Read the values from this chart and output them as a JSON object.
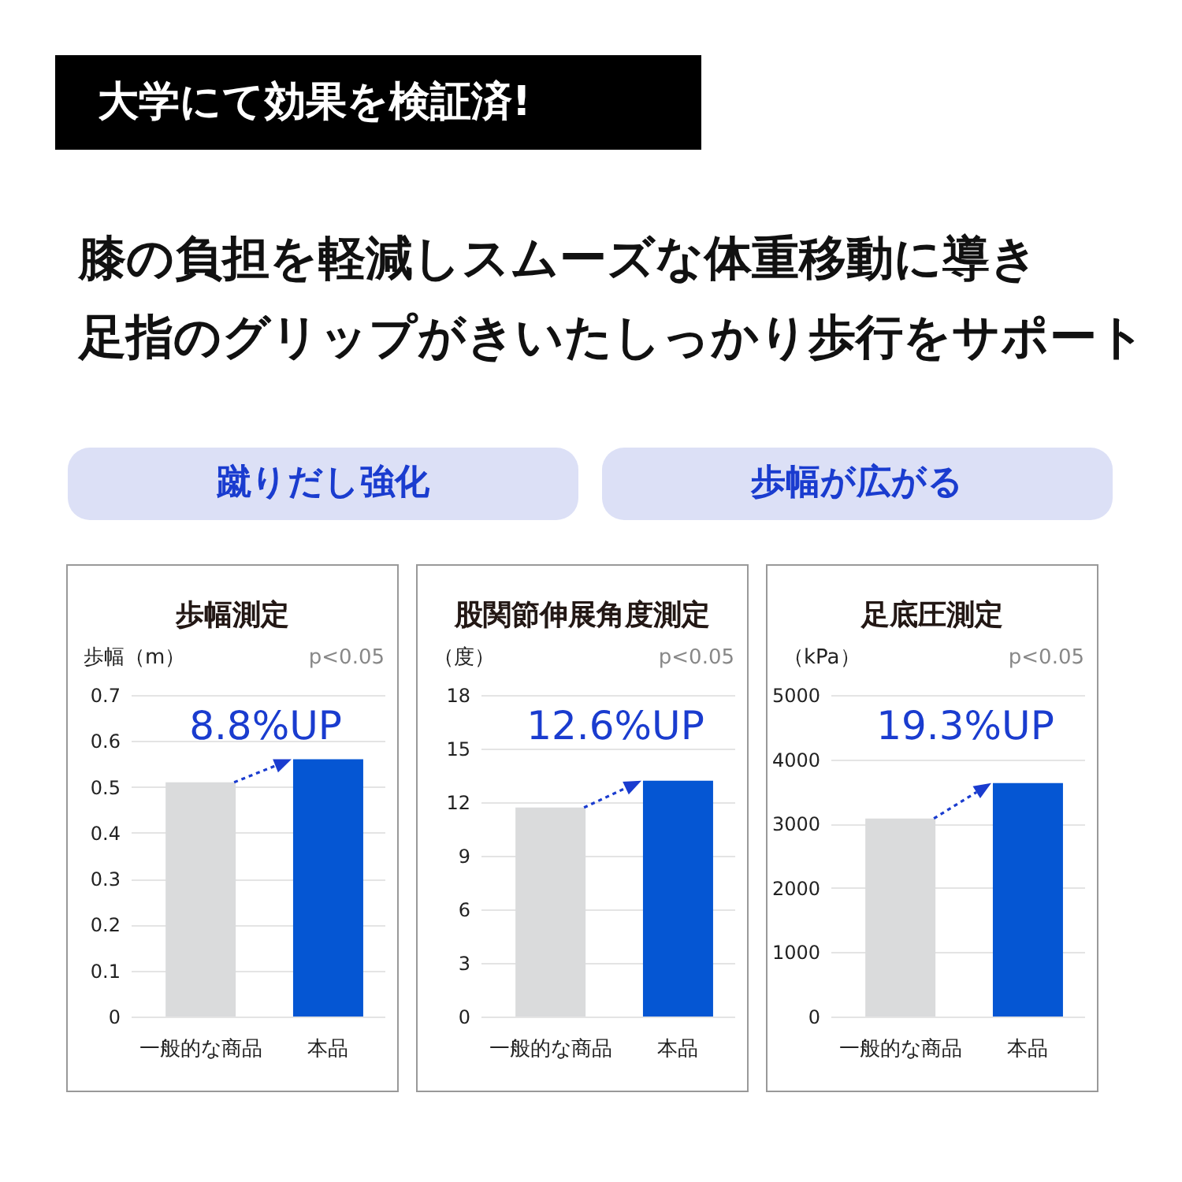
{
  "chart_data": [
    {
      "type": "other",
      "title": "大学にて効果を検証済!",
      "subtitle": "膝の負担を軽減しスムーズな体重移動に導き",
      "annotations": [
        "足指のグリップがきいたしっかり歩行をサポート",
        "蹴りだし強化",
        "歩幅が広がる"
      ]
    },
    {
      "type": "bar",
      "title": "歩幅測定",
      "ylabel": "歩幅（m）",
      "categories": [
        "一般的な商品",
        "本品"
      ],
      "values": [
        0.51,
        0.56
      ],
      "colors": [
        "#dadbdc",
        "#0556d3"
      ],
      "ylim": [
        0,
        0.7
      ],
      "yticks": [
        0,
        0.1,
        0.2,
        0.3,
        0.4,
        0.5,
        0.6,
        0.7
      ],
      "grid": "y",
      "annotations": [
        "p<0.05",
        "8.8%UP"
      ]
    },
    {
      "type": "bar",
      "title": "股関節伸展角度測定",
      "ylabel": "（度）",
      "categories": [
        "一般的な商品",
        "本品"
      ],
      "values": [
        11.7,
        13.2
      ],
      "colors": [
        "#dadbdc",
        "#0556d3"
      ],
      "ylim": [
        0,
        18
      ],
      "yticks": [
        0,
        3,
        6,
        9,
        12,
        15,
        18
      ],
      "grid": "y",
      "annotations": [
        "p<0.05",
        "12.6%UP"
      ]
    },
    {
      "type": "bar",
      "title": "足底圧測定",
      "ylabel": "（kPa）",
      "categories": [
        "一般的な商品",
        "本品"
      ],
      "values": [
        3080,
        3630
      ],
      "colors": [
        "#dadbdc",
        "#0556d3"
      ],
      "ylim": [
        0,
        5000
      ],
      "yticks": [
        0,
        1000,
        2000,
        3000,
        4000,
        5000
      ],
      "grid": "y",
      "annotations": [
        "p<0.05",
        "19.3%UP"
      ]
    }
  ]
}
